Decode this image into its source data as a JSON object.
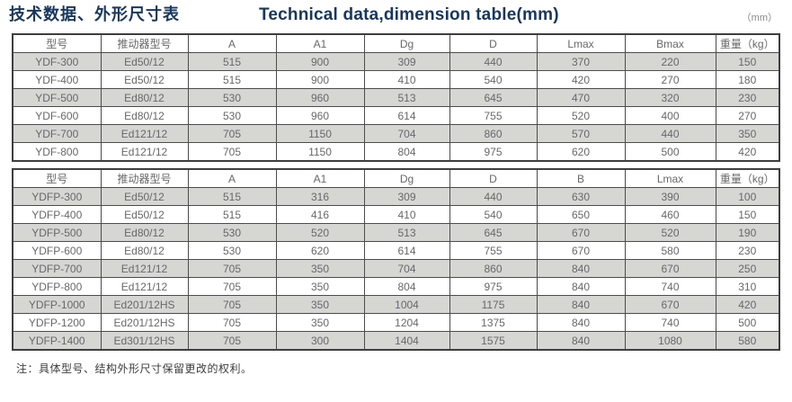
{
  "header": {
    "title_zh": "技术数据、外形尺寸表",
    "title_en": "Technical data,dimension table(mm)",
    "unit_note": "（mm）"
  },
  "table_ydf": {
    "columns": [
      "型号",
      "推动器型号",
      "A",
      "A1",
      "Dg",
      "D",
      "Lmax",
      "Bmax",
      "重量（kg）"
    ],
    "rows": [
      [
        "YDF-300",
        "Ed50/12",
        "515",
        "900",
        "309",
        "440",
        "370",
        "220",
        "150"
      ],
      [
        "YDF-400",
        "Ed50/12",
        "515",
        "900",
        "410",
        "540",
        "420",
        "270",
        "180"
      ],
      [
        "YDF-500",
        "Ed80/12",
        "530",
        "960",
        "513",
        "645",
        "470",
        "320",
        "230"
      ],
      [
        "YDF-600",
        "Ed80/12",
        "530",
        "960",
        "614",
        "755",
        "520",
        "400",
        "270"
      ],
      [
        "YDF-700",
        "Ed121/12",
        "705",
        "1150",
        "704",
        "860",
        "570",
        "440",
        "350"
      ],
      [
        "YDF-800",
        "Ed121/12",
        "705",
        "1150",
        "804",
        "975",
        "620",
        "500",
        "420"
      ]
    ]
  },
  "table_ydfp": {
    "columns": [
      "型号",
      "推动器型号",
      "A",
      "A1",
      "Dg",
      "D",
      "B",
      "Lmax",
      "重量（kg）"
    ],
    "rows": [
      [
        "YDFP-300",
        "Ed50/12",
        "515",
        "316",
        "309",
        "440",
        "630",
        "390",
        "100"
      ],
      [
        "YDFP-400",
        "Ed50/12",
        "515",
        "416",
        "410",
        "540",
        "650",
        "460",
        "150"
      ],
      [
        "YDFP-500",
        "Ed80/12",
        "530",
        "520",
        "513",
        "645",
        "670",
        "520",
        "190"
      ],
      [
        "YDFP-600",
        "Ed80/12",
        "530",
        "620",
        "614",
        "755",
        "670",
        "580",
        "230"
      ],
      [
        "YDFP-700",
        "Ed121/12",
        "705",
        "350",
        "704",
        "860",
        "840",
        "670",
        "250"
      ],
      [
        "YDFP-800",
        "Ed121/12",
        "705",
        "350",
        "804",
        "975",
        "840",
        "740",
        "310"
      ],
      [
        "YDFP-1000",
        "Ed201/12HS",
        "705",
        "350",
        "1004",
        "1175",
        "840",
        "670",
        "420"
      ],
      [
        "YDFP-1200",
        "Ed201/12HS",
        "705",
        "350",
        "1204",
        "1375",
        "840",
        "740",
        "500"
      ],
      [
        "YDFP-1400",
        "Ed301/12HS",
        "705",
        "300",
        "1404",
        "1575",
        "840",
        "1080",
        "580"
      ]
    ]
  },
  "footnote": "注：具体型号、结构外形尺寸保留更改的权利。",
  "colors": {
    "title_navy": "#17375e",
    "row_alt_gray": "#d6d6d3",
    "border_dark": "#4c4c4c",
    "cell_text": "#68686b",
    "unit_text": "#8a8a8a"
  }
}
